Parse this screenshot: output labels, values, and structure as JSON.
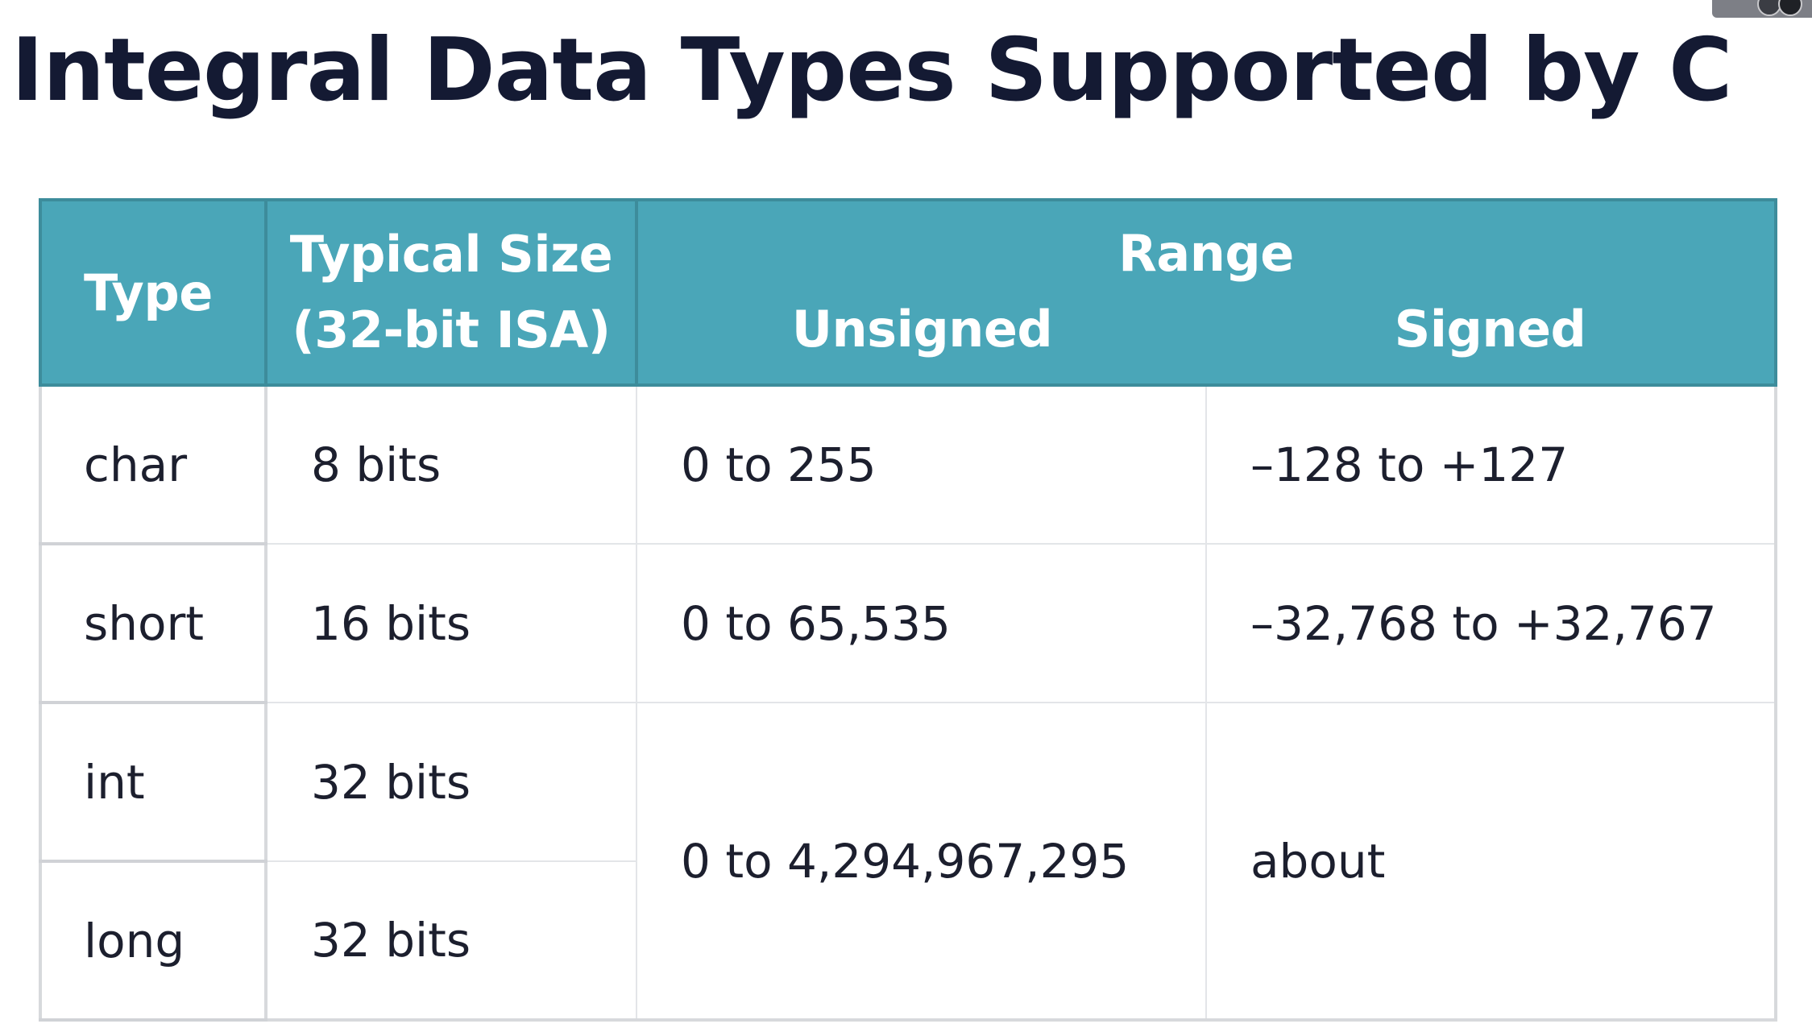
{
  "slide": {
    "title": "Integral Data Types Supported by C"
  },
  "table": {
    "headers": {
      "type": "Type",
      "size_line1": "Typical Size",
      "size_line2": "(32-bit ISA)",
      "range": "Range",
      "unsigned": "Unsigned",
      "signed": "Signed"
    },
    "rows": [
      {
        "type": "char",
        "size": "8 bits",
        "unsigned": "0 to 255",
        "signed": "–128 to +127"
      },
      {
        "type": "short",
        "size": "16 bits",
        "unsigned": "0 to 65,535",
        "signed": "–32,768 to +32,767"
      },
      {
        "type": "int",
        "size": "32 bits"
      },
      {
        "type": "long",
        "size": "32 bits"
      }
    ],
    "merged_int_long": {
      "unsigned": "0 to 4,294,967,295",
      "signed": "about"
    }
  },
  "colors": {
    "header_bg": "#4aa6b8",
    "title_text": "#141a33"
  }
}
